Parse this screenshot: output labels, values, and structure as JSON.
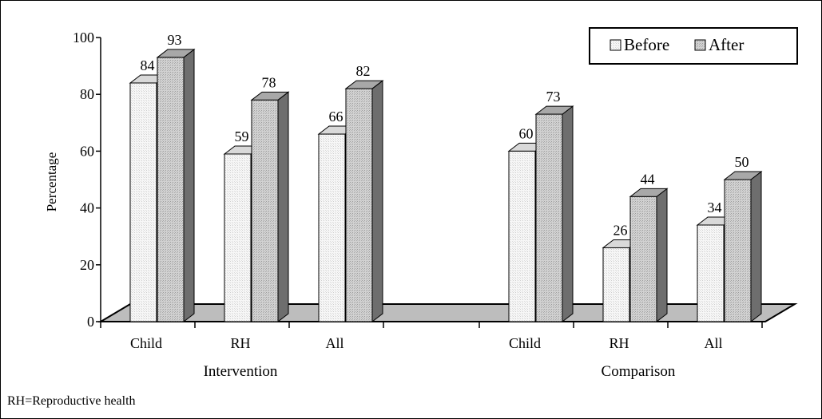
{
  "chart_data": {
    "type": "bar",
    "style": "3d-clustered-column",
    "ylabel": "Percentage",
    "ylim": [
      0,
      100
    ],
    "yticks": [
      0,
      20,
      40,
      60,
      80,
      100
    ],
    "grid": false,
    "legend_position": "top-right",
    "legend": [
      "Before",
      "After"
    ],
    "groups": [
      {
        "label": "Intervention",
        "categories": [
          "Child",
          "RH",
          "All"
        ],
        "series": [
          {
            "name": "Before",
            "values": [
              84,
              59,
              66
            ]
          },
          {
            "name": "After",
            "values": [
              93,
              78,
              82
            ]
          }
        ]
      },
      {
        "label": "Comparison",
        "categories": [
          "Child",
          "RH",
          "All"
        ],
        "series": [
          {
            "name": "Before",
            "values": [
              60,
              26,
              34
            ]
          },
          {
            "name": "After",
            "values": [
              73,
              44,
              50
            ]
          }
        ]
      }
    ],
    "colors": {
      "before_front": "#f4f4f4",
      "before_side": "#9a9a9a",
      "after_front": "#c9c9c9",
      "after_side": "#6e6e6e",
      "floor": "#bdbdbd"
    }
  },
  "footnote": "RH=Reproductive health"
}
